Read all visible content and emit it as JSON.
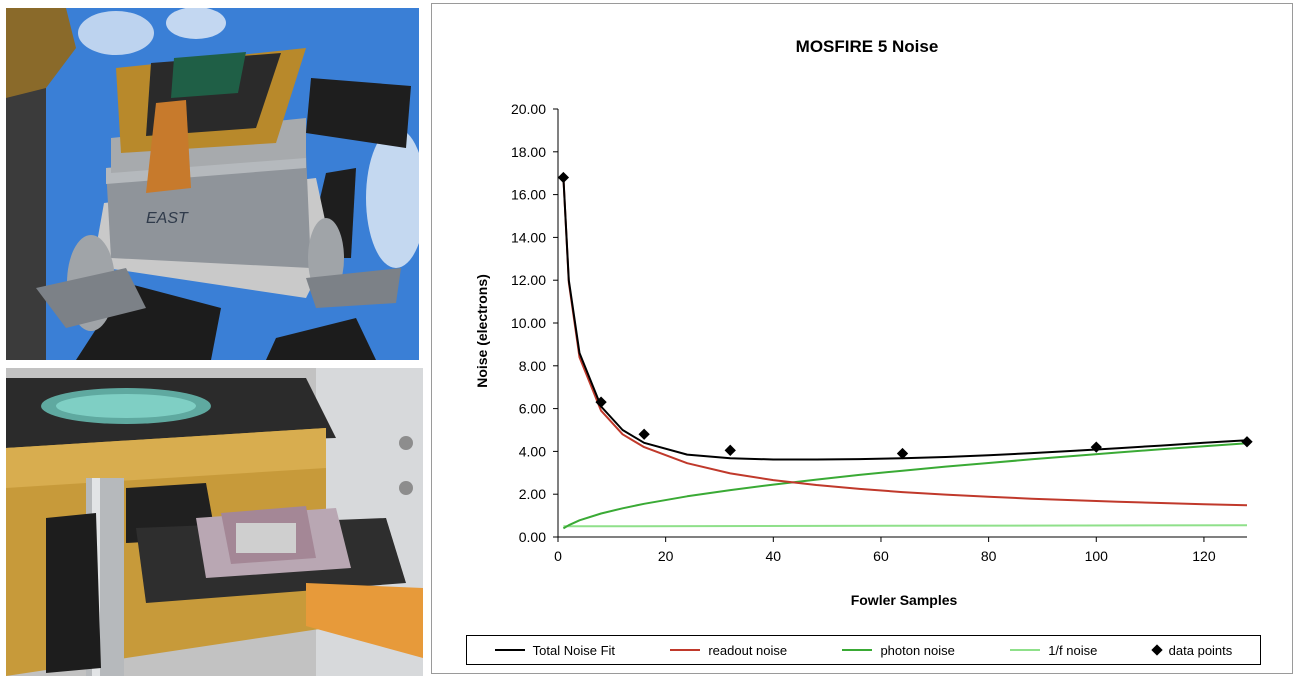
{
  "photos": {
    "top": {
      "handwritten_label": "EAST"
    },
    "bottom": {}
  },
  "chart_data": {
    "type": "line",
    "title": "MOSFIRE 5 Noise",
    "xlabel": "Fowler Samples",
    "ylabel": "Noise (electrons)",
    "xlim": [
      0,
      128
    ],
    "ylim": [
      0,
      20
    ],
    "x_ticks": [
      "0",
      "20",
      "40",
      "60",
      "80",
      "100",
      "120"
    ],
    "y_ticks": [
      "0.00",
      "2.00",
      "4.00",
      "6.00",
      "8.00",
      "10.00",
      "12.00",
      "14.00",
      "16.00",
      "18.00",
      "20.00"
    ],
    "grid": false,
    "legend_position": "bottom",
    "series": [
      {
        "name": "Total Noise Fit",
        "color": "#000000",
        "kind": "line",
        "x": [
          1,
          2,
          4,
          8,
          12,
          16,
          24,
          32,
          40,
          48,
          56,
          64,
          72,
          80,
          88,
          96,
          104,
          112,
          120,
          128
        ],
        "y": [
          16.8,
          12.0,
          8.6,
          6.1,
          5.0,
          4.4,
          3.85,
          3.68,
          3.62,
          3.62,
          3.64,
          3.68,
          3.74,
          3.82,
          3.92,
          4.03,
          4.15,
          4.27,
          4.4,
          4.52
        ]
      },
      {
        "name": "readout noise",
        "color": "#c0392b",
        "kind": "line",
        "x": [
          1,
          2,
          4,
          8,
          12,
          16,
          24,
          32,
          40,
          48,
          56,
          64,
          72,
          80,
          88,
          96,
          104,
          112,
          120,
          128
        ],
        "y": [
          16.8,
          11.9,
          8.4,
          5.9,
          4.8,
          4.2,
          3.45,
          2.97,
          2.66,
          2.43,
          2.25,
          2.1,
          1.98,
          1.88,
          1.79,
          1.72,
          1.65,
          1.59,
          1.53,
          1.48
        ]
      },
      {
        "name": "photon noise",
        "color": "#3aaa35",
        "kind": "line",
        "x": [
          1,
          2,
          4,
          8,
          12,
          16,
          24,
          32,
          40,
          48,
          56,
          64,
          72,
          80,
          88,
          96,
          104,
          112,
          120,
          128
        ],
        "y": [
          0.4,
          0.55,
          0.78,
          1.1,
          1.34,
          1.55,
          1.9,
          2.19,
          2.45,
          2.68,
          2.9,
          3.1,
          3.29,
          3.46,
          3.63,
          3.79,
          3.95,
          4.1,
          4.24,
          4.38
        ]
      },
      {
        "name": "1/f noise",
        "color": "#8fe08a",
        "kind": "line",
        "x": [
          1,
          8,
          128
        ],
        "y": [
          0.5,
          0.5,
          0.55
        ]
      },
      {
        "name": "data points",
        "color": "#000000",
        "kind": "marker",
        "x": [
          1,
          8,
          16,
          32,
          64,
          100,
          128
        ],
        "y": [
          16.8,
          6.3,
          4.8,
          4.05,
          3.9,
          4.2,
          4.45
        ]
      }
    ]
  }
}
